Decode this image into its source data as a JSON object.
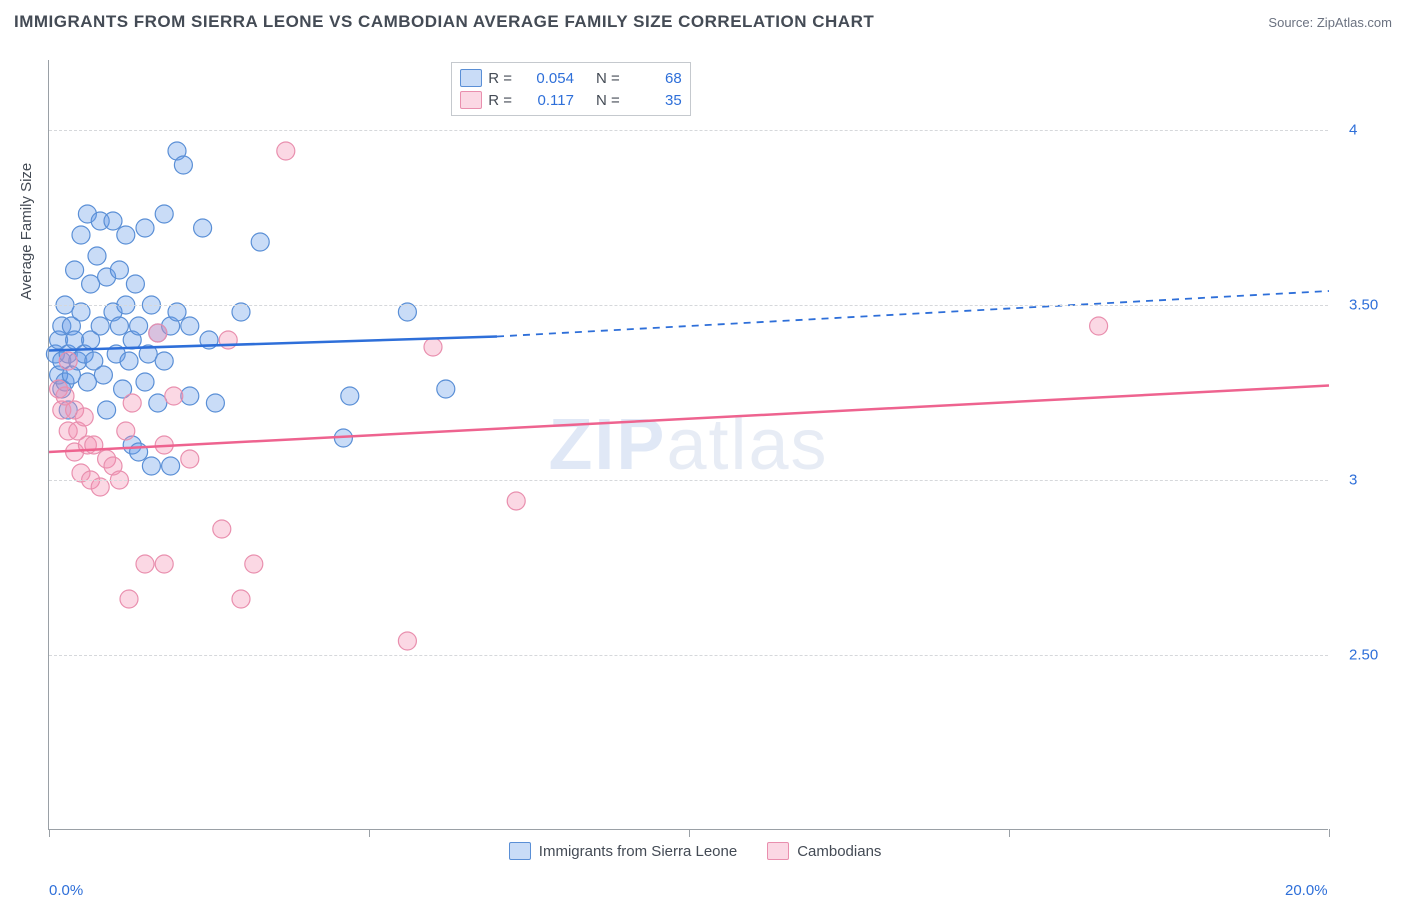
{
  "title": "IMMIGRANTS FROM SIERRA LEONE VS CAMBODIAN AVERAGE FAMILY SIZE CORRELATION CHART",
  "source_label": "Source:",
  "source_name": "ZipAtlas.com",
  "y_axis_title": "Average Family Size",
  "watermark_a": "ZIP",
  "watermark_b": "atlas",
  "chart": {
    "type": "scatter",
    "background_color": "#ffffff",
    "grid_color": "#d6d8db",
    "axis_color": "#9aa0a6",
    "text_color": "#444b55",
    "value_color": "#2e6fd9",
    "xlim": [
      0,
      20
    ],
    "ylim": [
      2.0,
      4.2
    ],
    "x_ticks": [
      0,
      5,
      10,
      15,
      20
    ],
    "x_tick_labels": {
      "0": "0.0%",
      "20": "20.0%"
    },
    "y_ticks": [
      2.5,
      3.0,
      3.5,
      4.0
    ],
    "y_tick_labels": {
      "2.5": "2.50",
      "3.0": "3.00",
      "3.5": "3.50",
      "4.0": "4.00"
    },
    "marker_radius": 9,
    "marker_stroke_width": 1.2,
    "trend_stroke_width": 2.5,
    "series": [
      {
        "id": "sierra_leone",
        "label": "Immigrants from Sierra Leone",
        "fill": "rgba(99,155,233,0.35)",
        "stroke": "#5a8fd6",
        "trend_color": "#2e6fd9",
        "r_value": "0.054",
        "n_value": "68",
        "trend": {
          "x1": 0,
          "y1": 3.37,
          "solid_to_x": 7.0,
          "y_at_solid": 3.41,
          "x2": 20,
          "y2": 3.54
        },
        "points": [
          [
            0.1,
            3.36
          ],
          [
            0.15,
            3.3
          ],
          [
            0.15,
            3.4
          ],
          [
            0.2,
            3.34
          ],
          [
            0.2,
            3.44
          ],
          [
            0.2,
            3.26
          ],
          [
            0.25,
            3.5
          ],
          [
            0.25,
            3.28
          ],
          [
            0.3,
            3.36
          ],
          [
            0.3,
            3.2
          ],
          [
            0.35,
            3.44
          ],
          [
            0.35,
            3.3
          ],
          [
            0.4,
            3.4
          ],
          [
            0.4,
            3.6
          ],
          [
            0.45,
            3.34
          ],
          [
            0.5,
            3.7
          ],
          [
            0.5,
            3.48
          ],
          [
            0.55,
            3.36
          ],
          [
            0.6,
            3.76
          ],
          [
            0.6,
            3.28
          ],
          [
            0.65,
            3.56
          ],
          [
            0.65,
            3.4
          ],
          [
            0.7,
            3.34
          ],
          [
            0.75,
            3.64
          ],
          [
            0.8,
            3.44
          ],
          [
            0.8,
            3.74
          ],
          [
            0.85,
            3.3
          ],
          [
            0.9,
            3.58
          ],
          [
            0.9,
            3.2
          ],
          [
            1.0,
            3.48
          ],
          [
            1.0,
            3.74
          ],
          [
            1.05,
            3.36
          ],
          [
            1.1,
            3.6
          ],
          [
            1.1,
            3.44
          ],
          [
            1.15,
            3.26
          ],
          [
            1.2,
            3.7
          ],
          [
            1.2,
            3.5
          ],
          [
            1.25,
            3.34
          ],
          [
            1.3,
            3.4
          ],
          [
            1.3,
            3.1
          ],
          [
            1.35,
            3.56
          ],
          [
            1.4,
            3.44
          ],
          [
            1.4,
            3.08
          ],
          [
            1.5,
            3.72
          ],
          [
            1.5,
            3.28
          ],
          [
            1.55,
            3.36
          ],
          [
            1.6,
            3.5
          ],
          [
            1.6,
            3.04
          ],
          [
            1.7,
            3.42
          ],
          [
            1.7,
            3.22
          ],
          [
            1.8,
            3.76
          ],
          [
            1.8,
            3.34
          ],
          [
            1.9,
            3.44
          ],
          [
            1.9,
            3.04
          ],
          [
            2.0,
            3.94
          ],
          [
            2.0,
            3.48
          ],
          [
            2.1,
            3.9
          ],
          [
            2.2,
            3.24
          ],
          [
            2.2,
            3.44
          ],
          [
            2.4,
            3.72
          ],
          [
            2.5,
            3.4
          ],
          [
            2.6,
            3.22
          ],
          [
            3.0,
            3.48
          ],
          [
            3.3,
            3.68
          ],
          [
            4.6,
            3.12
          ],
          [
            4.7,
            3.24
          ],
          [
            5.6,
            3.48
          ],
          [
            6.2,
            3.26
          ]
        ]
      },
      {
        "id": "cambodians",
        "label": "Cambodians",
        "fill": "rgba(244,143,177,0.35)",
        "stroke": "#e98fae",
        "trend_color": "#ee638f",
        "r_value": "0.117",
        "n_value": "35",
        "trend": {
          "x1": 0,
          "y1": 3.08,
          "solid_to_x": 20,
          "y_at_solid": 3.27,
          "x2": 20,
          "y2": 3.27
        },
        "points": [
          [
            0.15,
            3.26
          ],
          [
            0.2,
            3.2
          ],
          [
            0.25,
            3.24
          ],
          [
            0.3,
            3.34
          ],
          [
            0.3,
            3.14
          ],
          [
            0.4,
            3.08
          ],
          [
            0.4,
            3.2
          ],
          [
            0.45,
            3.14
          ],
          [
            0.5,
            3.02
          ],
          [
            0.55,
            3.18
          ],
          [
            0.6,
            3.1
          ],
          [
            0.65,
            3.0
          ],
          [
            0.7,
            3.1
          ],
          [
            0.8,
            2.98
          ],
          [
            0.9,
            3.06
          ],
          [
            1.0,
            3.04
          ],
          [
            1.1,
            3.0
          ],
          [
            1.2,
            3.14
          ],
          [
            1.25,
            2.66
          ],
          [
            1.3,
            3.22
          ],
          [
            1.5,
            2.76
          ],
          [
            1.7,
            3.42
          ],
          [
            1.8,
            2.76
          ],
          [
            1.8,
            3.1
          ],
          [
            1.95,
            3.24
          ],
          [
            2.2,
            3.06
          ],
          [
            2.7,
            2.86
          ],
          [
            2.8,
            3.4
          ],
          [
            3.0,
            2.66
          ],
          [
            3.2,
            2.76
          ],
          [
            3.7,
            3.94
          ],
          [
            5.6,
            2.54
          ],
          [
            6.0,
            3.38
          ],
          [
            7.3,
            2.94
          ],
          [
            16.4,
            3.44
          ]
        ]
      }
    ]
  },
  "legend_top": {
    "r_label": "R =",
    "n_label": "N ="
  }
}
